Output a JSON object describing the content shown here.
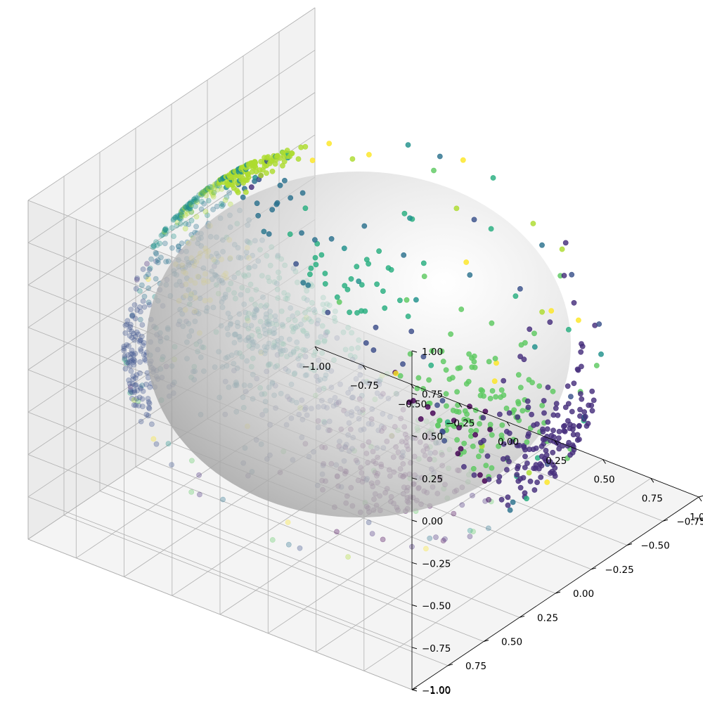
{
  "chart_data": {
    "type": "scatter",
    "projection": "3d",
    "title": "",
    "xlabel": "",
    "ylabel": "",
    "zlabel": "",
    "xlim": [
      -1,
      1
    ],
    "ylim": [
      -1,
      1
    ],
    "zlim": [
      -1,
      1
    ],
    "grid": true,
    "surface": {
      "shape": "unit-sphere",
      "color": "#bdbdbd",
      "alpha": 0.3
    },
    "x_ticks": [
      "−1.00",
      "−0.75",
      "−0.50",
      "−0.25",
      "0.00",
      "0.25",
      "0.50",
      "0.75",
      "1.00"
    ],
    "y_ticks": [
      "−1.00",
      "−0.75",
      "−0.50",
      "−0.25",
      "0.00",
      "0.25",
      "0.50",
      "0.75",
      "1.00"
    ],
    "z_ticks": [
      "−1.00",
      "−0.75",
      "−0.50",
      "−0.25",
      "0.00",
      "0.25",
      "0.50",
      "0.75",
      "1.00"
    ],
    "tick_values": [
      -1,
      -0.75,
      -0.5,
      -0.25,
      0,
      0.25,
      0.5,
      0.75,
      1
    ],
    "colormap": "viridis",
    "point_alpha": 0.6,
    "clusters": [
      {
        "id": 1,
        "color": "#440154",
        "center": [
          0.7,
          0.7,
          0.0
        ],
        "count": 170,
        "spread": 0.18
      },
      {
        "id": 2,
        "color": "#472f7d",
        "center": [
          0.98,
          0.05,
          -0.1
        ],
        "count": 160,
        "spread": 0.22
      },
      {
        "id": 3,
        "color": "#3b528b",
        "center": [
          -0.6,
          0.78,
          0.12
        ],
        "count": 140,
        "spread": 0.18
      },
      {
        "id": 4,
        "color": "#2c728e",
        "center": [
          -0.98,
          -0.15,
          -0.1
        ],
        "count": 170,
        "spread": 0.24
      },
      {
        "id": 5,
        "color": "#21918c",
        "center": [
          -0.8,
          0.1,
          0.58
        ],
        "count": 110,
        "spread": 0.15
      },
      {
        "id": 6,
        "color": "#28ae80",
        "center": [
          -0.75,
          -0.55,
          -0.42
        ],
        "count": 180,
        "spread": 0.2
      },
      {
        "id": 7,
        "color": "#5ec962",
        "center": [
          0.05,
          -0.65,
          -0.75
        ],
        "count": 150,
        "spread": 0.2
      },
      {
        "id": 8,
        "color": "#addc30",
        "center": [
          -0.6,
          0.05,
          0.78
        ],
        "count": 150,
        "spread": 0.14
      },
      {
        "id": 9,
        "color": "#fde725",
        "center": [
          -0.35,
          0.65,
          0.66
        ],
        "count": 40,
        "spread": 0.1
      },
      {
        "id": 10,
        "color": "#3d4e8a",
        "center": [
          0.5,
          0.8,
          0.32
        ],
        "count": 130,
        "spread": 0.2
      },
      {
        "id": 11,
        "color": "#2a788e",
        "center": [
          0.1,
          0.85,
          0.52
        ],
        "count": 130,
        "spread": 0.15
      }
    ]
  }
}
